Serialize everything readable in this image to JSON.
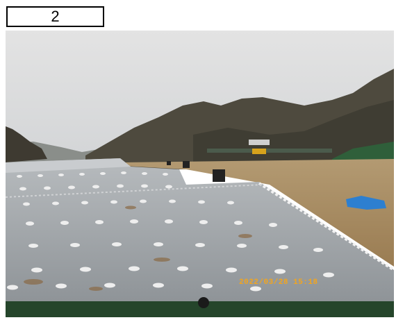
{
  "photo_number": "2",
  "timestamp": "2022/03/28 15:18",
  "colors": {
    "sky": "#dcdcdc",
    "sheet": "#9ea3a7",
    "ground": "#a0845a",
    "timestamp": "#f2a51e"
  }
}
